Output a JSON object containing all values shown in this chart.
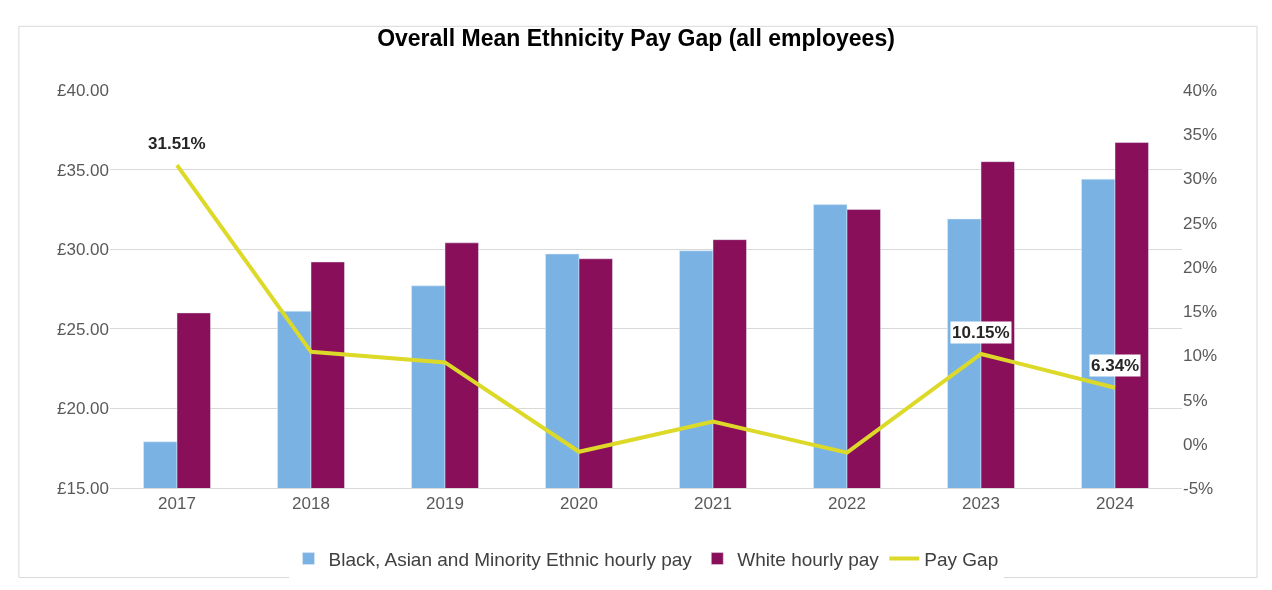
{
  "chart_data": {
    "type": "bar",
    "title": "Overall Mean Ethnicity Pay Gap (all employees)",
    "categories": [
      "2017",
      "2018",
      "2019",
      "2020",
      "2021",
      "2022",
      "2023",
      "2024"
    ],
    "series": [
      {
        "name": "Black, Asian and Minority Ethnic hourly pay",
        "color": "#7ab3e3",
        "values": [
          17.9,
          26.1,
          27.7,
          29.7,
          29.9,
          32.8,
          31.9,
          34.4
        ]
      },
      {
        "name": "White hourly pay",
        "color": "#8a0f5a",
        "values": [
          26.0,
          29.2,
          30.4,
          29.4,
          30.6,
          32.5,
          35.5,
          36.7
        ]
      },
      {
        "name": "Pay Gap",
        "type": "line",
        "axis": "y2",
        "color": "#dcd929",
        "values": [
          31.51,
          10.4,
          9.2,
          -0.9,
          2.5,
          -1.0,
          10.15,
          6.34
        ],
        "value_labels": [
          "31.51%",
          null,
          null,
          null,
          null,
          null,
          "10.15%",
          "6.34%"
        ]
      }
    ],
    "ylim": [
      15,
      40
    ],
    "yticks": [
      {
        "value": 15,
        "label": "£15.00"
      },
      {
        "value": 20,
        "label": "£20.00"
      },
      {
        "value": 25,
        "label": "£25.00"
      },
      {
        "value": 30,
        "label": "£30.00"
      },
      {
        "value": 35,
        "label": "£35.00"
      },
      {
        "value": 40,
        "label": "£40.00"
      }
    ],
    "y2lim": [
      -5,
      40
    ],
    "y2ticks": [
      {
        "value": -5,
        "label": "-5%"
      },
      {
        "value": 0,
        "label": "0%"
      },
      {
        "value": 5,
        "label": "5%"
      },
      {
        "value": 10,
        "label": "10%"
      },
      {
        "value": 15,
        "label": "15%"
      },
      {
        "value": 20,
        "label": "20%"
      },
      {
        "value": 25,
        "label": "25%"
      },
      {
        "value": 30,
        "label": "30%"
      },
      {
        "value": 35,
        "label": "35%"
      },
      {
        "value": 40,
        "label": "40%"
      }
    ],
    "grid": "y",
    "legend": "bottom",
    "marker": "none",
    "line_style": "solid"
  }
}
